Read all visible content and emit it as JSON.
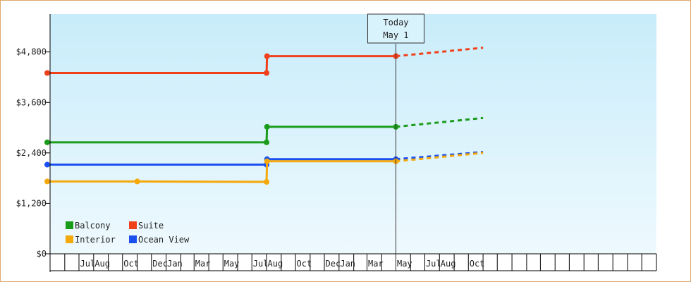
{
  "chart_data": {
    "type": "line",
    "today_marker": {
      "line1": "Today",
      "line2": "May 1",
      "x": "2023-05-01"
    },
    "y_axis": {
      "ticks": [
        "$0",
        "$1,200",
        "$2,400",
        "$3,600",
        "$4,800"
      ],
      "tick_values": [
        0,
        1200,
        2400,
        3600,
        4800
      ],
      "ylim": [
        0,
        5700
      ]
    },
    "x_axis": {
      "start": "2021-05-01",
      "end": "2024-11-01",
      "month_labels": [
        {
          "label": "Jul",
          "date": "2021-07-01"
        },
        {
          "label": "Aug",
          "date": "2021-08-01"
        },
        {
          "label": "Oct",
          "date": "2021-10-01"
        },
        {
          "label": "Dec",
          "date": "2021-12-01"
        },
        {
          "label": "Jan",
          "date": "2022-01-01"
        },
        {
          "label": "Mar",
          "date": "2022-03-01"
        },
        {
          "label": "May",
          "date": "2022-05-01"
        },
        {
          "label": "Jul",
          "date": "2022-07-01"
        },
        {
          "label": "Aug",
          "date": "2022-08-01"
        },
        {
          "label": "Oct",
          "date": "2022-10-01"
        },
        {
          "label": "Dec",
          "date": "2022-12-01"
        },
        {
          "label": "Jan",
          "date": "2023-01-01"
        },
        {
          "label": "Mar",
          "date": "2023-03-01"
        },
        {
          "label": "May",
          "date": "2023-05-01"
        },
        {
          "label": "Jul",
          "date": "2023-07-01"
        },
        {
          "label": "Aug",
          "date": "2023-08-01"
        },
        {
          "label": "Oct",
          "date": "2023-10-01"
        }
      ]
    },
    "legend": {
      "placement": "bottom-left",
      "items": [
        {
          "label": "Balcony",
          "color": "#1a9c1a"
        },
        {
          "label": "Suite",
          "color": "#f0401a"
        },
        {
          "label": "Interior",
          "color": "#f5a80a"
        },
        {
          "label": "Ocean View",
          "color": "#1a4ff0"
        }
      ]
    },
    "series": [
      {
        "name": "Suite",
        "color": "#f0401a",
        "points": [
          {
            "x": "2021-04-25",
            "y": 4300
          },
          {
            "x": "2022-08-01",
            "y": 4300
          },
          {
            "x": "2022-08-02",
            "y": 4700
          },
          {
            "x": "2023-05-01",
            "y": 4700
          }
        ],
        "forecast": [
          {
            "x": "2023-05-01",
            "y": 4700
          },
          {
            "x": "2023-11-01",
            "y": 4900
          }
        ]
      },
      {
        "name": "Balcony",
        "color": "#1a9c1a",
        "points": [
          {
            "x": "2021-04-25",
            "y": 2650
          },
          {
            "x": "2022-08-01",
            "y": 2650
          },
          {
            "x": "2022-08-02",
            "y": 3020
          },
          {
            "x": "2023-05-01",
            "y": 3020
          }
        ],
        "forecast": [
          {
            "x": "2023-05-01",
            "y": 3020
          },
          {
            "x": "2023-11-01",
            "y": 3230
          }
        ]
      },
      {
        "name": "Ocean View",
        "color": "#1a4ff0",
        "points": [
          {
            "x": "2021-04-25",
            "y": 2120
          },
          {
            "x": "2022-08-01",
            "y": 2120
          },
          {
            "x": "2022-08-02",
            "y": 2250
          },
          {
            "x": "2023-05-01",
            "y": 2250
          }
        ],
        "forecast": [
          {
            "x": "2023-05-01",
            "y": 2250
          },
          {
            "x": "2023-11-01",
            "y": 2420
          }
        ]
      },
      {
        "name": "Interior",
        "color": "#f5a80a",
        "points": [
          {
            "x": "2021-04-25",
            "y": 1720
          },
          {
            "x": "2021-11-01",
            "y": 1720
          },
          {
            "x": "2022-08-01",
            "y": 1710
          },
          {
            "x": "2022-08-02",
            "y": 2200
          },
          {
            "x": "2023-05-01",
            "y": 2200
          }
        ],
        "forecast": [
          {
            "x": "2023-05-01",
            "y": 2200
          },
          {
            "x": "2023-11-01",
            "y": 2400
          }
        ]
      }
    ]
  }
}
